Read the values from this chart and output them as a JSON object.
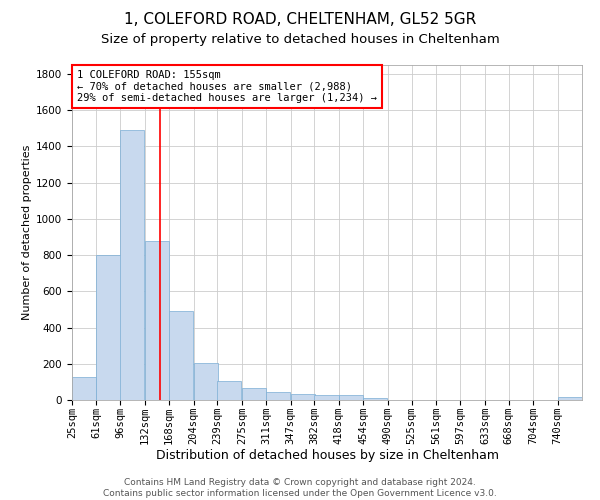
{
  "title1": "1, COLEFORD ROAD, CHELTENHAM, GL52 5GR",
  "title2": "Size of property relative to detached houses in Cheltenham",
  "xlabel": "Distribution of detached houses by size in Cheltenham",
  "ylabel": "Number of detached properties",
  "bar_color": "#c8d9ee",
  "bar_edge_color": "#7aadd4",
  "grid_color": "#cccccc",
  "annotation_line_color": "red",
  "annotation_box_color": "red",
  "annotation_text": "1 COLEFORD ROAD: 155sqm\n← 70% of detached houses are smaller (2,988)\n29% of semi-detached houses are larger (1,234) →",
  "property_size": 155,
  "footnote": "Contains HM Land Registry data © Crown copyright and database right 2024.\nContains public sector information licensed under the Open Government Licence v3.0.",
  "categories": [
    "25sqm",
    "61sqm",
    "96sqm",
    "132sqm",
    "168sqm",
    "204sqm",
    "239sqm",
    "275sqm",
    "311sqm",
    "347sqm",
    "382sqm",
    "418sqm",
    "454sqm",
    "490sqm",
    "525sqm",
    "561sqm",
    "597sqm",
    "633sqm",
    "668sqm",
    "704sqm",
    "740sqm"
  ],
  "values": [
    125,
    800,
    1490,
    880,
    490,
    205,
    105,
    65,
    45,
    35,
    30,
    25,
    12,
    0,
    0,
    0,
    0,
    0,
    0,
    0,
    15
  ],
  "bin_edges": [
    25,
    61,
    96,
    132,
    168,
    204,
    239,
    275,
    311,
    347,
    382,
    418,
    454,
    490,
    525,
    561,
    597,
    633,
    668,
    704,
    740
  ],
  "ylim": [
    0,
    1850
  ],
  "yticks": [
    0,
    200,
    400,
    600,
    800,
    1000,
    1200,
    1400,
    1600,
    1800
  ],
  "property_line_x": 155,
  "title1_fontsize": 11,
  "title2_fontsize": 9.5,
  "xlabel_fontsize": 9,
  "ylabel_fontsize": 8,
  "tick_fontsize": 7.5,
  "annotation_fontsize": 7.5,
  "footnote_fontsize": 6.5
}
